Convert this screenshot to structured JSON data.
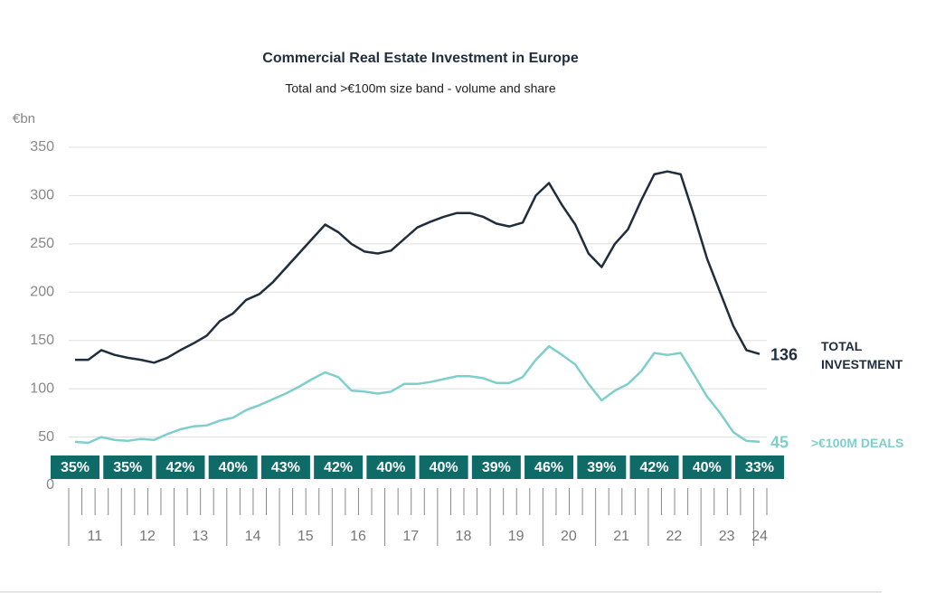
{
  "chart_data": {
    "type": "line",
    "title": "Commercial Real Estate Investment in Europe",
    "subtitle": "Total and >€100m size band - volume and share",
    "y_label": "€bn",
    "ylim": [
      0,
      350
    ],
    "yticks": [
      0,
      50,
      100,
      150,
      200,
      250,
      300,
      350
    ],
    "grid": true,
    "year_labels": [
      "11",
      "12",
      "13",
      "14",
      "15",
      "16",
      "17",
      "18",
      "19",
      "20",
      "21",
      "22",
      "23",
      "24"
    ],
    "share": {
      "values": [
        35,
        35,
        42,
        40,
        43,
        42,
        40,
        40,
        39,
        46,
        39,
        42,
        40,
        33
      ],
      "value_labels": [
        "35%",
        "35%",
        "42%",
        "40%",
        "43%",
        "42%",
        "40%",
        "40%",
        "39%",
        "46%",
        "39%",
        "42%",
        "40%",
        "33%"
      ],
      "color": "#0e6b68"
    },
    "series": [
      {
        "name": "TOTAL INVESTMENT",
        "color": "#1f2d3d",
        "values": [
          130,
          130,
          140,
          135,
          132,
          130,
          127,
          132,
          140,
          147,
          155,
          170,
          178,
          192,
          198,
          210,
          225,
          240,
          255,
          270,
          262,
          250,
          242,
          240,
          243,
          255,
          267,
          273,
          278,
          282,
          282,
          278,
          271,
          268,
          272,
          300,
          313,
          290,
          270,
          240,
          226,
          250,
          265,
          295,
          322,
          325,
          322,
          280,
          235,
          200,
          165,
          140,
          136
        ]
      },
      {
        "name": ">€100M DEALS",
        "color": "#7ecfcc",
        "values": [
          45,
          44,
          50,
          47,
          46,
          48,
          47,
          53,
          58,
          61,
          62,
          67,
          70,
          78,
          83,
          89,
          95,
          102,
          110,
          117,
          112,
          98,
          97,
          95,
          97,
          105,
          105,
          107,
          110,
          113,
          113,
          111,
          106,
          106,
          112,
          130,
          144,
          135,
          125,
          105,
          88,
          98,
          105,
          118,
          137,
          135,
          137,
          115,
          92,
          75,
          55,
          46,
          45
        ]
      }
    ]
  }
}
